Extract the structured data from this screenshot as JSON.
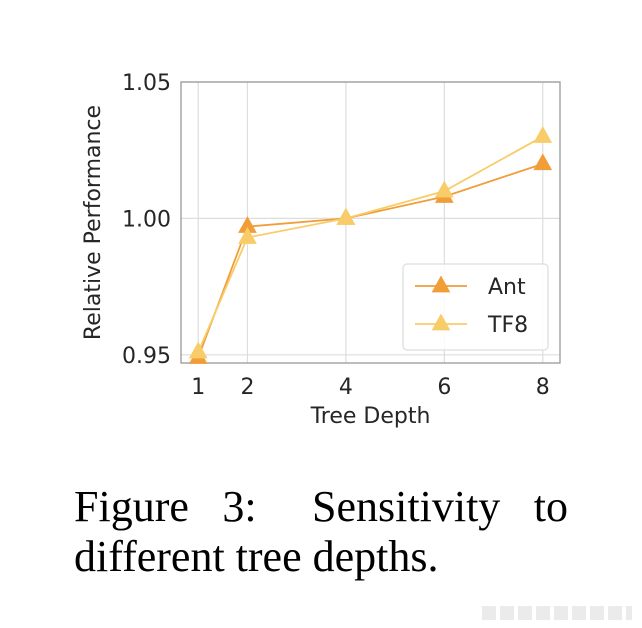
{
  "chart_data": {
    "type": "line",
    "title": "",
    "xlabel": "Tree Depth",
    "ylabel": "Relative Performance",
    "x": [
      1,
      2,
      4,
      6,
      8
    ],
    "xticks": [
      "1",
      "2",
      "4",
      "6",
      "8"
    ],
    "xlim": [
      0.65,
      8.35
    ],
    "yticks": [
      "0.95",
      "1.00",
      "1.05"
    ],
    "ylim": [
      0.947,
      1.05
    ],
    "grid": true,
    "legend_position": "bottom-right",
    "series": [
      {
        "name": "Ant",
        "values": [
          0.949,
          0.997,
          1.0,
          1.008,
          1.02
        ],
        "color": "#f19d38",
        "marker": "triangle"
      },
      {
        "name": "TF8",
        "values": [
          0.951,
          0.993,
          1.0,
          1.01,
          1.03
        ],
        "color": "#f9cc6a",
        "marker": "triangle"
      }
    ]
  },
  "caption": {
    "label": "Figure 3:",
    "text": "Sensitivity to different tree depths."
  }
}
